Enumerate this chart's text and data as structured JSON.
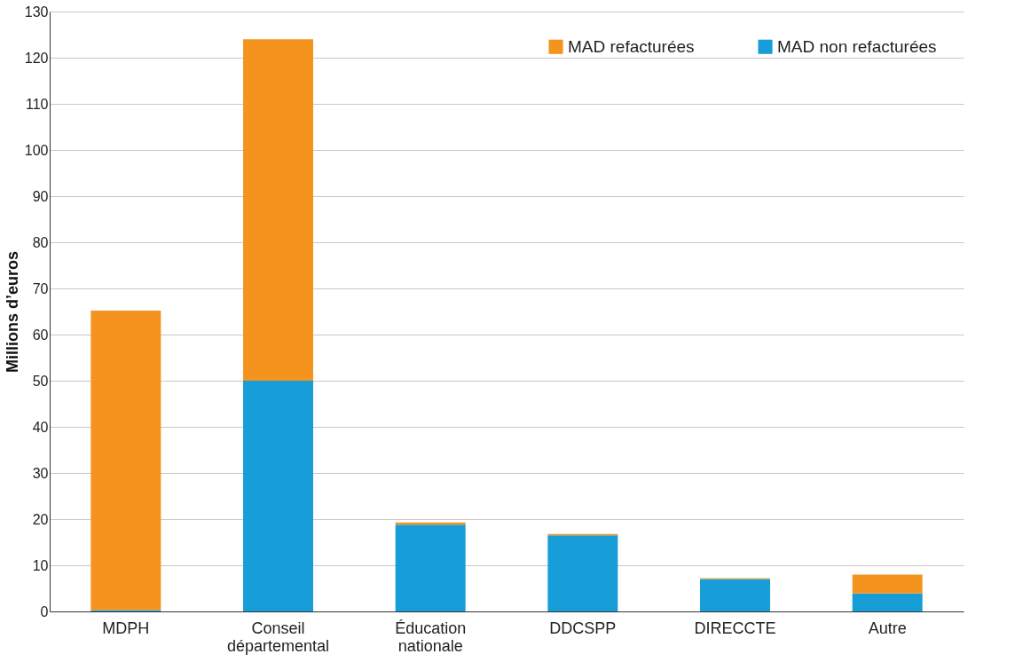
{
  "chart_data": {
    "type": "bar",
    "stacked": true,
    "ylabel": "Millions d’euros",
    "categories": [
      "MDPH",
      "Conseil départemental",
      "Éducation nationale",
      "DDCSPP",
      "DIRECCTE",
      "Autre"
    ],
    "series": [
      {
        "name": "MAD non refacturées",
        "color": "#179dd8",
        "values": [
          0.3,
          50,
          18.8,
          16.5,
          7.0,
          3.9
        ]
      },
      {
        "name": "MAD refacturées",
        "color": "#f5931f",
        "values": [
          64.9,
          74,
          0.5,
          0.3,
          0.2,
          4.1
        ]
      }
    ],
    "ylim": [
      0,
      130
    ],
    "yticks": [
      0,
      10,
      20,
      30,
      40,
      50,
      60,
      70,
      80,
      90,
      100,
      110,
      120,
      130
    ],
    "grid": "y",
    "legend": "top right"
  }
}
